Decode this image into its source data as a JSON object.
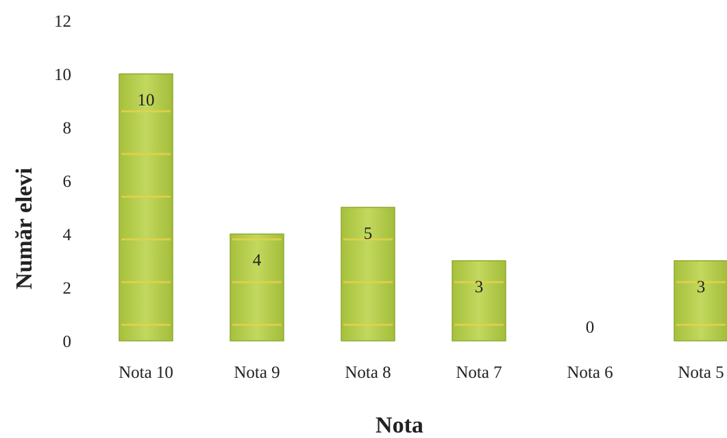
{
  "chart_data": {
    "type": "bar",
    "categories": [
      "Nota 10",
      "Nota 9",
      "Nota 8",
      "Nota 7",
      "Nota 6",
      "Nota 5"
    ],
    "values": [
      10,
      4,
      5,
      3,
      0,
      3
    ],
    "data_labels": [
      "10",
      "4",
      "5",
      "3",
      "0",
      "3"
    ],
    "title": "",
    "xlabel": "Nota",
    "ylabel": "Număr elevi",
    "ylim": [
      0,
      12
    ],
    "yticks": [
      "0",
      "2",
      "4",
      "6",
      "8",
      "10",
      "12"
    ],
    "grid": false,
    "legend": "none",
    "bar_color": "#b3cc4a",
    "bar_stripe_color": "#e8d24a",
    "bar_edge_color": "#8fa832"
  }
}
